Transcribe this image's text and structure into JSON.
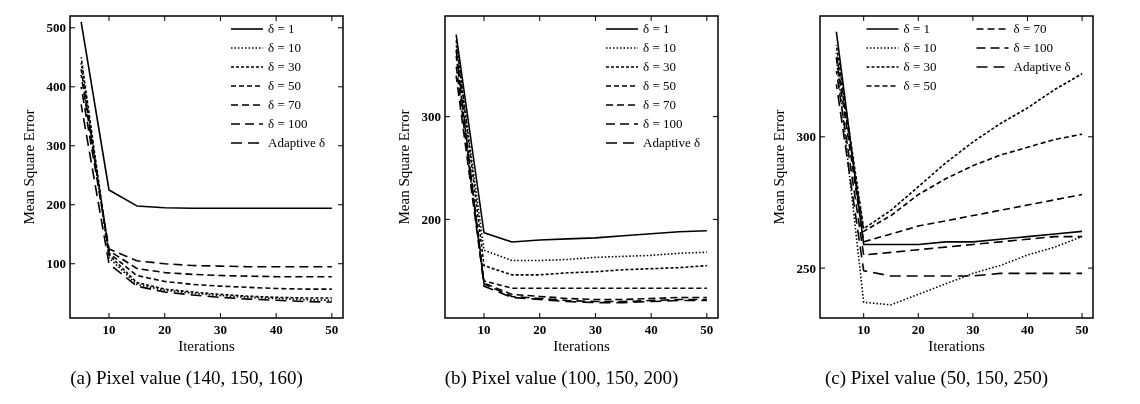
{
  "chart_data": [
    {
      "type": "line",
      "xlabel": "Iterations",
      "ylabel": "Mean Square Error",
      "x": [
        5,
        10,
        15,
        20,
        25,
        30,
        35,
        40,
        45,
        50
      ],
      "xlim": [
        3,
        52
      ],
      "ylim": [
        8,
        520
      ],
      "xticks": [
        10,
        20,
        30,
        40,
        50
      ],
      "yticks": [
        100,
        200,
        300,
        400,
        500
      ],
      "legend": "top right",
      "grid": false,
      "annotations": [
        "(a) Pixel value (140, 150, 160)"
      ],
      "series": [
        {
          "name": "δ = 1",
          "color": "#000000",
          "line_style": "solid",
          "values": [
            510,
            225,
            198,
            195,
            194,
            194,
            194,
            194,
            194,
            194
          ]
        },
        {
          "name": "δ = 10",
          "color": "#000000",
          "line_style": "dotted",
          "values": [
            440,
            110,
            65,
            55,
            50,
            46,
            43,
            41,
            39,
            38
          ]
        },
        {
          "name": "δ = 30",
          "color": "#000000",
          "line_style": "dashed",
          "values": [
            450,
            115,
            68,
            57,
            52,
            48,
            45,
            43,
            42,
            42
          ]
        },
        {
          "name": "δ = 50",
          "color": "#000000",
          "line_style": "dashed",
          "values": [
            430,
            118,
            80,
            70,
            65,
            62,
            60,
            58,
            57,
            57
          ]
        },
        {
          "name": "δ = 70",
          "color": "#000000",
          "line_style": "dashed",
          "values": [
            420,
            122,
            92,
            85,
            82,
            80,
            79,
            78,
            78,
            78
          ]
        },
        {
          "name": "δ = 100",
          "color": "#000000",
          "line_style": "dashed",
          "values": [
            400,
            125,
            105,
            100,
            97,
            96,
            95,
            95,
            95,
            95
          ]
        },
        {
          "name": "Adaptive δ",
          "color": "#000000",
          "line_style": "dashed",
          "values": [
            370,
            100,
            62,
            52,
            47,
            43,
            40,
            38,
            36,
            35
          ]
        }
      ]
    },
    {
      "type": "line",
      "xlabel": "Iterations",
      "ylabel": "Mean Square Error",
      "x": [
        5,
        10,
        15,
        20,
        25,
        30,
        35,
        40,
        45,
        50
      ],
      "xlim": [
        3,
        52
      ],
      "ylim": [
        104,
        398
      ],
      "xticks": [
        10,
        20,
        30,
        40,
        50
      ],
      "yticks": [
        200,
        300
      ],
      "legend": "top right",
      "grid": false,
      "annotations": [
        "(b) Pixel value (100, 150, 200)"
      ],
      "series": [
        {
          "name": "δ = 1",
          "color": "#000000",
          "line_style": "solid",
          "values": [
            380,
            187,
            178,
            180,
            181,
            182,
            184,
            186,
            188,
            189
          ]
        },
        {
          "name": "δ = 10",
          "color": "#000000",
          "line_style": "dotted",
          "values": [
            370,
            170,
            160,
            160,
            161,
            163,
            164,
            165,
            167,
            168
          ]
        },
        {
          "name": "δ = 30",
          "color": "#000000",
          "line_style": "dashed",
          "values": [
            375,
            155,
            146,
            146,
            148,
            149,
            151,
            152,
            153,
            155
          ]
        },
        {
          "name": "δ = 50",
          "color": "#000000",
          "line_style": "dashed",
          "values": [
            360,
            140,
            133,
            133,
            133,
            133,
            133,
            133,
            133,
            133
          ]
        },
        {
          "name": "δ = 70",
          "color": "#000000",
          "line_style": "dashed",
          "values": [
            350,
            138,
            127,
            125,
            123,
            122,
            122,
            123,
            124,
            124
          ]
        },
        {
          "name": "δ = 100",
          "color": "#000000",
          "line_style": "dashed",
          "values": [
            340,
            137,
            125,
            123,
            121,
            120,
            120,
            121,
            122,
            122
          ]
        },
        {
          "name": "Adaptive δ",
          "color": "#000000",
          "line_style": "dashed",
          "values": [
            365,
            135,
            124,
            122,
            120,
            119,
            119,
            120,
            121,
            121
          ]
        }
      ]
    },
    {
      "type": "line",
      "xlabel": "Iterations",
      "ylabel": "Mean Square Error",
      "x": [
        5,
        10,
        15,
        20,
        25,
        30,
        35,
        40,
        45,
        50
      ],
      "xlim": [
        2,
        52
      ],
      "ylim": [
        231,
        346
      ],
      "xticks": [
        10,
        20,
        30,
        40,
        50
      ],
      "yticks": [
        250,
        300
      ],
      "legend": "top",
      "grid": false,
      "annotations": [
        "(c) Pixel value (50, 150, 250)"
      ],
      "series": [
        {
          "name": "δ = 1",
          "color": "#000000",
          "line_style": "solid",
          "values": [
            340,
            259,
            259,
            259,
            260,
            260,
            261,
            262,
            263,
            264
          ]
        },
        {
          "name": "δ = 10",
          "color": "#000000",
          "line_style": "dotted",
          "values": [
            330,
            237,
            236,
            240,
            244,
            248,
            251,
            255,
            258,
            262
          ]
        },
        {
          "name": "δ = 30",
          "color": "#000000",
          "line_style": "dashed",
          "values": [
            335,
            265,
            272,
            281,
            290,
            298,
            305,
            311,
            318,
            324
          ]
        },
        {
          "name": "δ = 50",
          "color": "#000000",
          "line_style": "dashed",
          "values": [
            332,
            264,
            270,
            278,
            284,
            289,
            293,
            296,
            299,
            301
          ]
        },
        {
          "name": "δ = 70",
          "color": "#000000",
          "line_style": "dashed",
          "values": [
            330,
            260,
            263,
            266,
            268,
            270,
            272,
            274,
            276,
            278
          ]
        },
        {
          "name": "δ = 100",
          "color": "#000000",
          "line_style": "dashed",
          "values": [
            325,
            255,
            256,
            257,
            258,
            259,
            260,
            261,
            262,
            262
          ]
        },
        {
          "name": "Adaptive δ",
          "color": "#000000",
          "line_style": "dashed",
          "values": [
            320,
            249,
            247,
            247,
            247,
            247,
            248,
            248,
            248,
            248
          ]
        }
      ]
    }
  ]
}
